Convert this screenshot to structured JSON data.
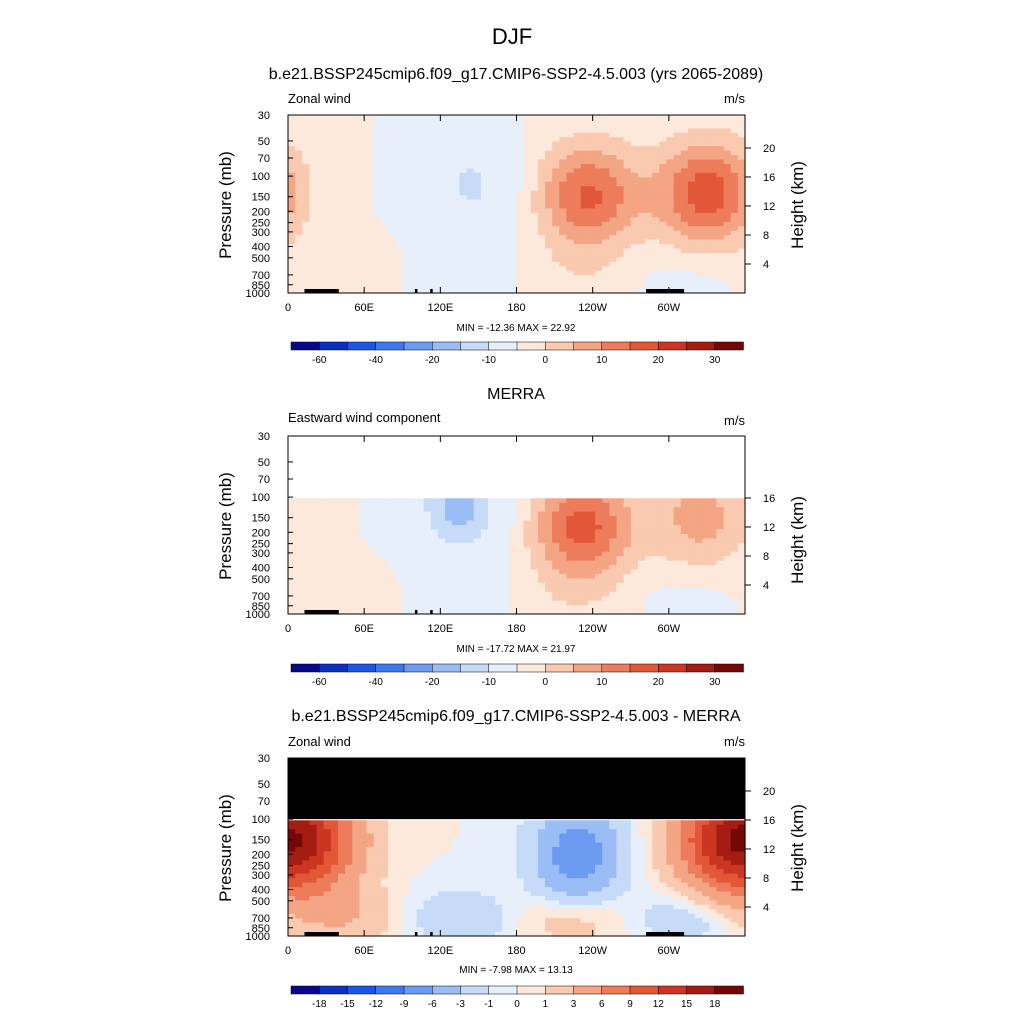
{
  "page_title": "DJF",
  "colors": {
    "scale": [
      "#08088a",
      "#0a30c0",
      "#1d55e6",
      "#3f78ee",
      "#6c9bf2",
      "#9bbdf5",
      "#c6dbf7",
      "#e6effa",
      "#fde8dc",
      "#f9c9b0",
      "#f3a584",
      "#ec7c5b",
      "#e35739",
      "#cb3522",
      "#a51c12",
      "#760707"
    ],
    "terrain": "#000000",
    "mask": "#000000"
  },
  "chart_data": [
    {
      "type": "heatmap",
      "title": "b.e21.BSSP245cmip6.f09_g17.CMIP6-SSP2-4.5.003 (yrs 2065-2089)",
      "subtitle_left": "Zonal wind",
      "subtitle_right": "m/s",
      "ylabel": "Pressure (mb)",
      "ylabel_right": "Height (km)",
      "x_ticks": [
        "0",
        "60E",
        "120E",
        "180",
        "120W",
        "60W"
      ],
      "y_ticks": [
        "30",
        "50",
        "70",
        "100",
        "150",
        "200",
        "250",
        "300",
        "400",
        "500",
        "700",
        "850",
        "1000"
      ],
      "y_right_ticks": [
        "20",
        "16",
        "12",
        "8",
        "4"
      ],
      "stats": "MIN = -12.36  MAX =  22.92",
      "min": -12.36,
      "max": 22.92,
      "colorbar_ticks": [
        "-60",
        "-40",
        "-20",
        "-10",
        "0",
        "10",
        "20",
        "30"
      ],
      "jets": [
        {
          "lon": 237,
          "p": 150,
          "peak": 21
        },
        {
          "lon": 330,
          "p": 140,
          "peak": 22.9
        }
      ],
      "lows": [
        {
          "lon": 145,
          "p": 120,
          "peak": -11
        }
      ]
    },
    {
      "type": "heatmap",
      "title": "MERRA",
      "subtitle_left": "Eastward wind component",
      "subtitle_right": "m/s",
      "ylabel": "Pressure (mb)",
      "ylabel_right": "Height (km)",
      "x_ticks": [
        "0",
        "60E",
        "120E",
        "180",
        "120W",
        "60W"
      ],
      "y_ticks": [
        "30",
        "50",
        "70",
        "100",
        "150",
        "200",
        "250",
        "300",
        "400",
        "500",
        "700",
        "850",
        "1000"
      ],
      "y_right_ticks": [
        "16",
        "12",
        "8",
        "4"
      ],
      "stats": "MIN = -17.72  MAX =  21.97",
      "min": -17.72,
      "max": 21.97,
      "colorbar_ticks": [
        "-60",
        "-40",
        "-20",
        "-10",
        "0",
        "10",
        "20",
        "30"
      ],
      "jets": [
        {
          "lon": 232,
          "p": 180,
          "peak": 22
        },
        {
          "lon": 325,
          "p": 150,
          "peak": 12
        }
      ],
      "lows": [
        {
          "lon": 135,
          "p": 120,
          "peak": -17.7
        }
      ]
    },
    {
      "type": "heatmap",
      "title": "b.e21.BSSP245cmip6.f09_g17.CMIP6-SSP2-4.5.003 - MERRA",
      "subtitle_left": "Zonal wind",
      "subtitle_right": "m/s",
      "ylabel": "Pressure (mb)",
      "ylabel_right": "Height (km)",
      "x_ticks": [
        "0",
        "60E",
        "120E",
        "180",
        "120W",
        "60W"
      ],
      "y_ticks": [
        "30",
        "50",
        "70",
        "100",
        "150",
        "200",
        "250",
        "300",
        "400",
        "500",
        "700",
        "850",
        "1000"
      ],
      "y_right_ticks": [
        "20",
        "16",
        "12",
        "8",
        "4"
      ],
      "stats": "MIN = -7.98  MAX = 13.13",
      "min": -7.98,
      "max": 13.13,
      "colorbar_ticks": [
        "-18",
        "-15",
        "-12",
        "-9",
        "-6",
        "-3",
        "-1",
        "0",
        "1",
        "3",
        "6",
        "9",
        "12",
        "15",
        "18"
      ],
      "masked_above_mb": 100,
      "jets": [
        {
          "lon": 20,
          "p": 150,
          "peak": 10
        },
        {
          "lon": 345,
          "p": 150,
          "peak": 13.1
        }
      ],
      "lows": [
        {
          "lon": 228,
          "p": 200,
          "peak": -8
        }
      ]
    }
  ]
}
